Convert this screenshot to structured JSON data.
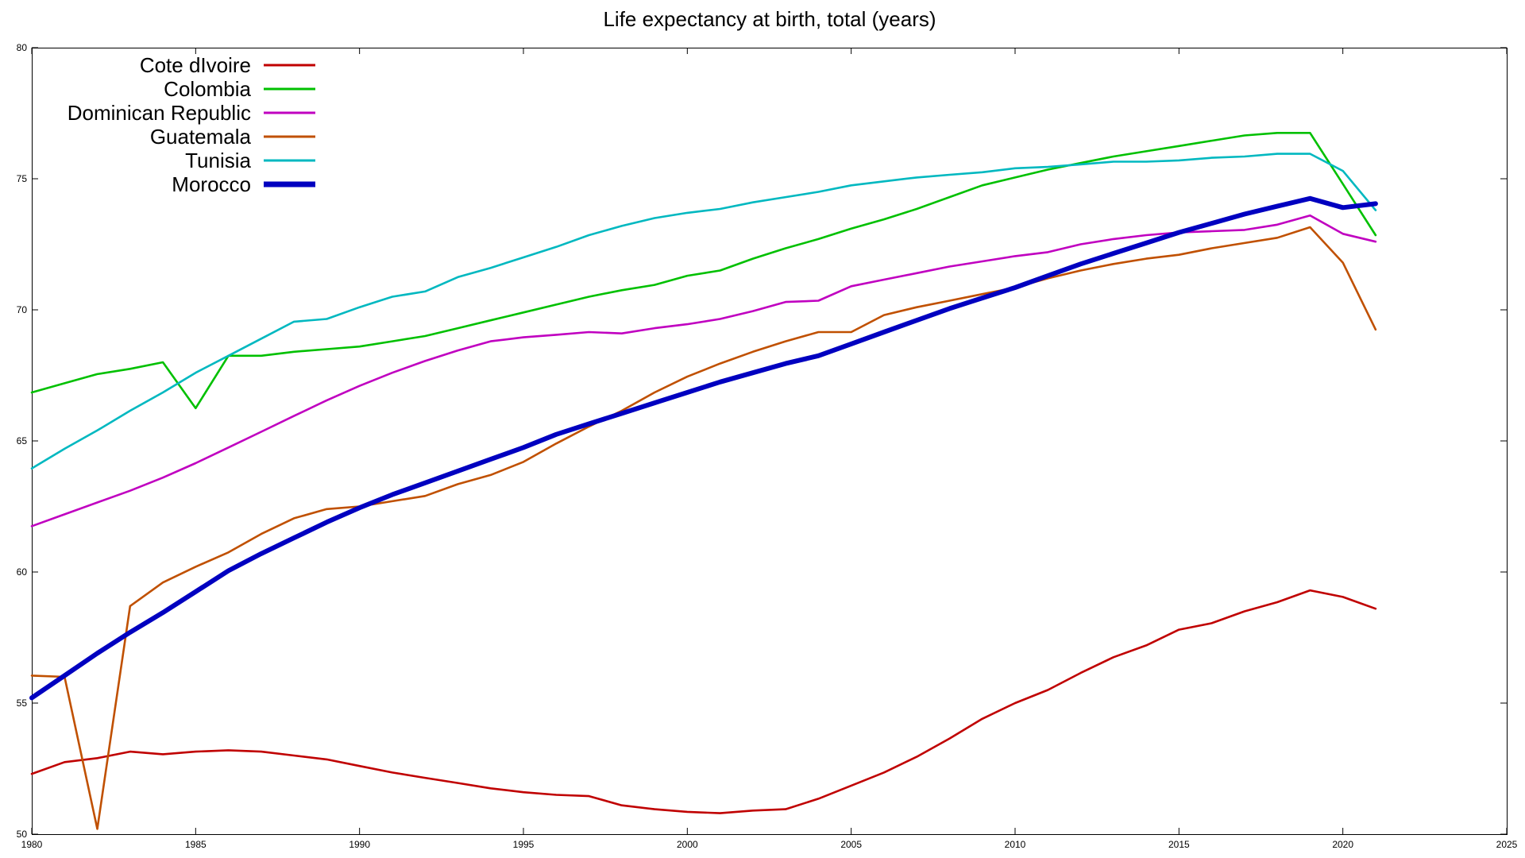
{
  "chart_data": {
    "type": "line",
    "title": "Life expectancy at birth, total (years)",
    "xlabel": "",
    "ylabel": "",
    "xlim": [
      1980,
      2025
    ],
    "ylim": [
      50,
      80
    ],
    "x_ticks": [
      1980,
      1985,
      1990,
      1995,
      2000,
      2005,
      2010,
      2015,
      2020,
      2025
    ],
    "y_ticks": [
      50,
      55,
      60,
      65,
      70,
      75,
      80
    ],
    "grid": false,
    "legend_position": "top-left",
    "x": [
      1980,
      1981,
      1982,
      1983,
      1984,
      1985,
      1986,
      1987,
      1988,
      1989,
      1990,
      1991,
      1992,
      1993,
      1994,
      1995,
      1996,
      1997,
      1998,
      1999,
      2000,
      2001,
      2002,
      2003,
      2004,
      2005,
      2006,
      2007,
      2008,
      2009,
      2010,
      2011,
      2012,
      2013,
      2014,
      2015,
      2016,
      2017,
      2018,
      2019,
      2020,
      2021
    ],
    "series": [
      {
        "name": "Cote dIvoire",
        "color": "#c00000",
        "bold": false,
        "values": [
          52.3,
          52.75,
          52.9,
          53.15,
          53.05,
          53.15,
          53.2,
          53.15,
          53.0,
          52.85,
          52.6,
          52.35,
          52.15,
          51.95,
          51.75,
          51.6,
          51.5,
          51.45,
          51.1,
          50.95,
          50.85,
          50.8,
          50.9,
          50.95,
          51.35,
          51.85,
          52.35,
          52.95,
          53.65,
          54.4,
          55.0,
          55.5,
          56.15,
          56.75,
          57.2,
          57.8,
          58.05,
          58.5,
          58.85,
          59.3,
          59.05,
          58.6
        ]
      },
      {
        "name": "Colombia",
        "color": "#00c000",
        "bold": false,
        "values": [
          66.85,
          67.2,
          67.55,
          67.75,
          68.0,
          66.25,
          68.25,
          68.25,
          68.4,
          68.5,
          68.6,
          68.8,
          69.0,
          69.3,
          69.6,
          69.9,
          70.2,
          70.5,
          70.75,
          70.95,
          71.3,
          71.5,
          71.95,
          72.35,
          72.7,
          73.1,
          73.45,
          73.85,
          74.3,
          74.75,
          75.05,
          75.35,
          75.6,
          75.85,
          76.05,
          76.25,
          76.45,
          76.65,
          76.75,
          76.75,
          74.8,
          72.85
        ]
      },
      {
        "name": "Dominican Republic",
        "color": "#c000c0",
        "bold": false,
        "values": [
          61.75,
          62.2,
          62.65,
          63.1,
          63.6,
          64.15,
          64.75,
          65.35,
          65.95,
          66.55,
          67.1,
          67.6,
          68.05,
          68.45,
          68.8,
          68.95,
          69.05,
          69.15,
          69.1,
          69.3,
          69.45,
          69.65,
          69.95,
          70.3,
          70.35,
          70.9,
          71.15,
          71.4,
          71.65,
          71.85,
          72.05,
          72.2,
          72.5,
          72.7,
          72.85,
          72.95,
          73.0,
          73.05,
          73.25,
          73.6,
          72.9,
          72.6
        ]
      },
      {
        "name": "Guatemala",
        "color": "#c05000",
        "bold": false,
        "values": [
          56.05,
          56.0,
          50.2,
          58.7,
          59.6,
          60.2,
          60.75,
          61.45,
          62.05,
          62.4,
          62.5,
          62.7,
          62.9,
          63.35,
          63.7,
          64.2,
          64.9,
          65.55,
          66.15,
          66.85,
          67.45,
          67.95,
          68.4,
          68.8,
          69.15,
          69.15,
          69.8,
          70.1,
          70.35,
          70.6,
          70.85,
          71.2,
          71.5,
          71.75,
          71.95,
          72.1,
          72.35,
          72.55,
          72.75,
          73.15,
          71.8,
          69.25
        ]
      },
      {
        "name": "Tunisia",
        "color": "#00b8c0",
        "bold": false,
        "values": [
          63.95,
          64.7,
          65.4,
          66.15,
          66.85,
          67.6,
          68.25,
          68.9,
          69.55,
          69.65,
          70.1,
          70.5,
          70.7,
          71.25,
          71.6,
          72.0,
          72.4,
          72.85,
          73.2,
          73.5,
          73.7,
          73.85,
          74.1,
          74.3,
          74.5,
          74.75,
          74.9,
          75.05,
          75.15,
          75.25,
          75.4,
          75.45,
          75.55,
          75.65,
          75.65,
          75.7,
          75.8,
          75.85,
          75.95,
          75.95,
          75.3,
          73.8
        ]
      },
      {
        "name": "Morocco",
        "color": "#0000c0",
        "bold": true,
        "values": [
          55.2,
          56.05,
          56.9,
          57.7,
          58.45,
          59.25,
          60.05,
          60.7,
          61.3,
          61.9,
          62.45,
          62.95,
          63.4,
          63.85,
          64.3,
          64.75,
          65.25,
          65.65,
          66.05,
          66.45,
          66.85,
          67.25,
          67.6,
          67.95,
          68.25,
          68.7,
          69.15,
          69.6,
          70.05,
          70.45,
          70.85,
          71.3,
          71.75,
          72.15,
          72.55,
          72.95,
          73.3,
          73.65,
          73.95,
          74.25,
          73.9,
          74.05
        ]
      }
    ]
  }
}
